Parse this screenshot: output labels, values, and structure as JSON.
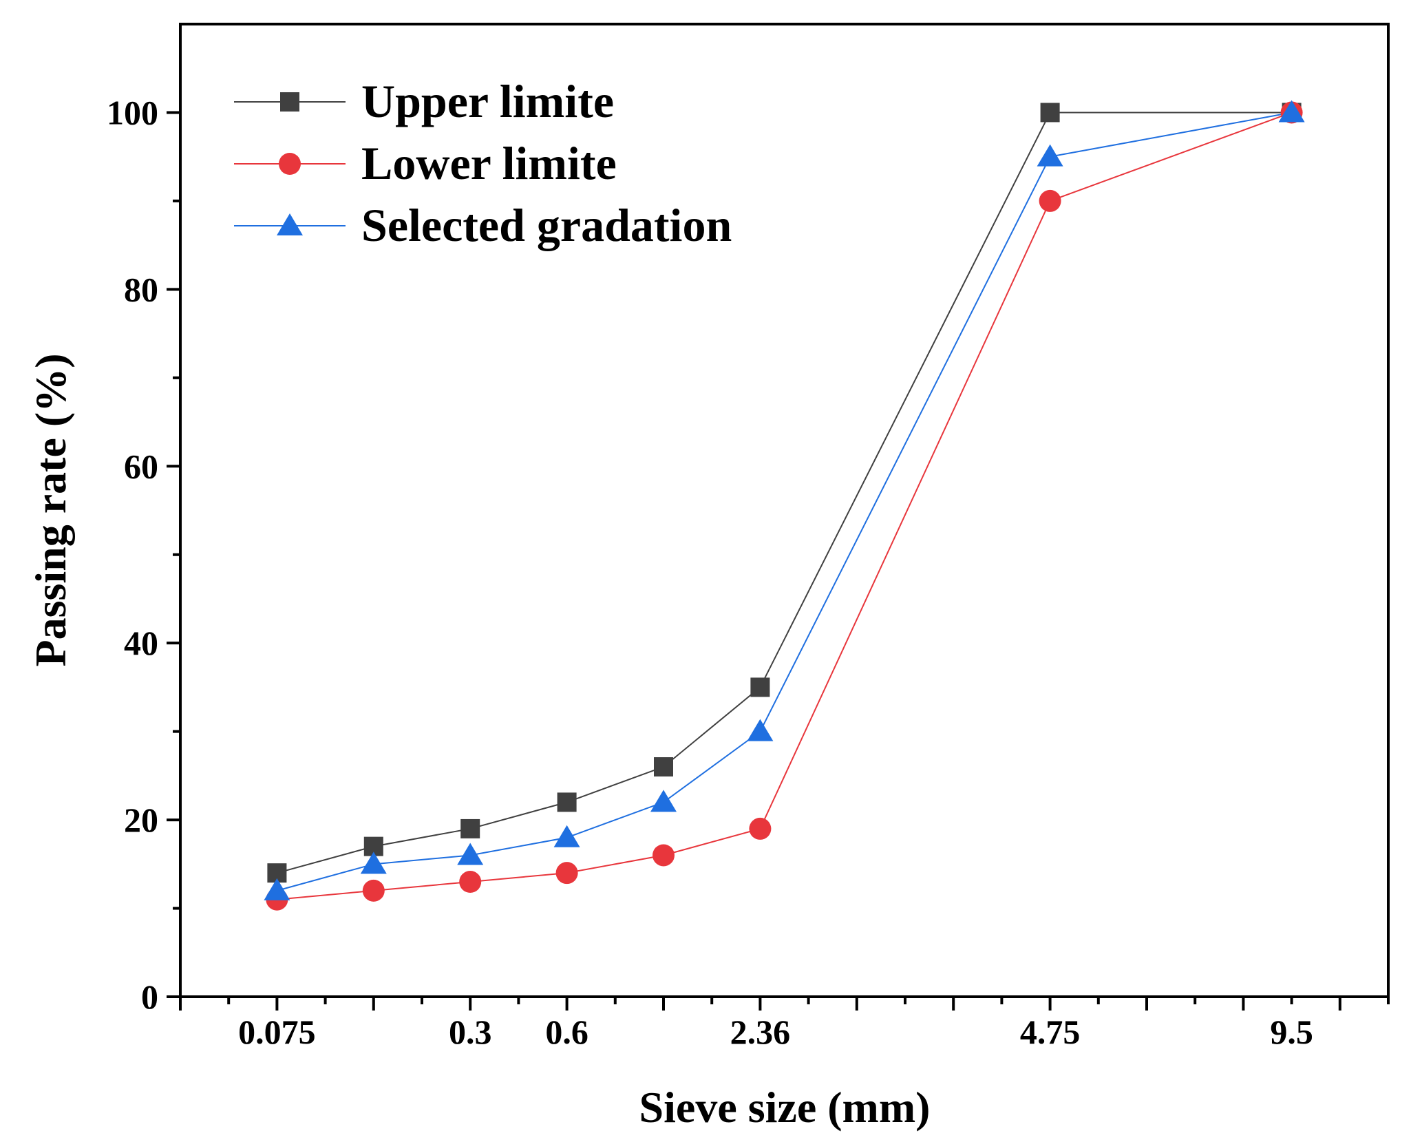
{
  "chart_data": {
    "type": "line",
    "title": "",
    "xlabel": "Sieve size (mm)",
    "ylabel": "Passing rate (%)",
    "ylim": [
      0,
      110
    ],
    "yticks": [
      0,
      20,
      40,
      60,
      80,
      100
    ],
    "x_positions": [
      1,
      2,
      3,
      4,
      5,
      6,
      9,
      11.5
    ],
    "xlim": [
      0,
      12.5
    ],
    "x_tick_labels": [
      {
        "pos": 1,
        "label": "0.075"
      },
      {
        "pos": 3,
        "label": "0.3"
      },
      {
        "pos": 4,
        "label": "0.6"
      },
      {
        "pos": 6,
        "label": "2.36"
      },
      {
        "pos": 9,
        "label": "4.75"
      },
      {
        "pos": 11.5,
        "label": "9.5"
      }
    ],
    "legend_position": "top-left",
    "series": [
      {
        "name": "Upper limite",
        "color": "#404040",
        "marker": "square",
        "values": [
          14,
          17,
          19,
          22,
          26,
          35,
          100,
          100
        ]
      },
      {
        "name": "Lower limite",
        "color": "#e8363c",
        "marker": "circle",
        "values": [
          11,
          12,
          13,
          14,
          16,
          19,
          90,
          100
        ]
      },
      {
        "name": "Selected gradation",
        "color": "#1f6fe0",
        "marker": "triangle",
        "values": [
          12,
          15,
          16,
          18,
          22,
          30,
          95,
          100
        ]
      }
    ]
  }
}
